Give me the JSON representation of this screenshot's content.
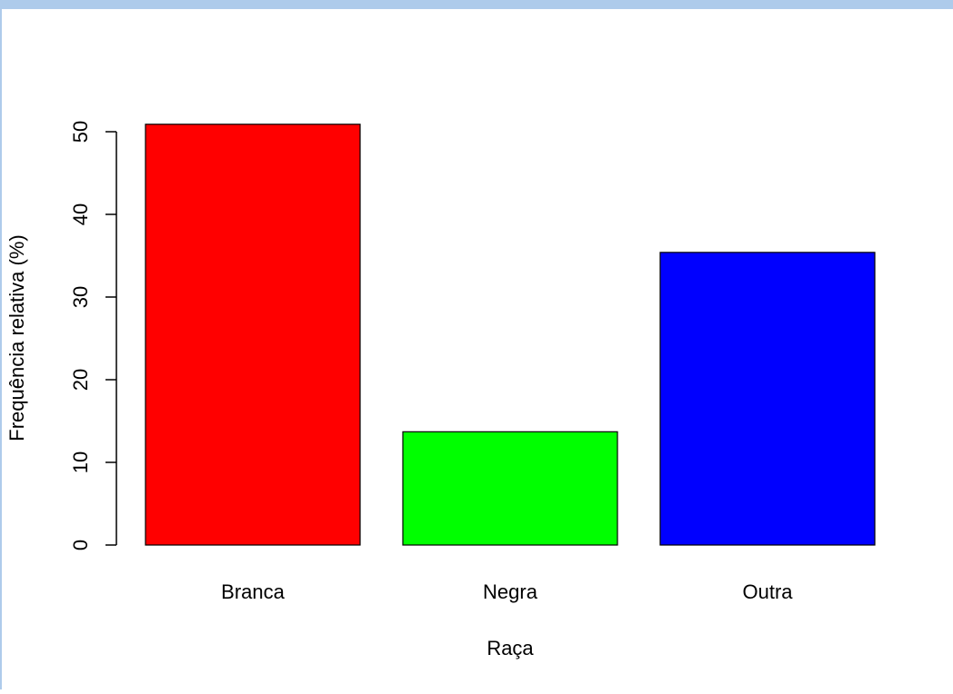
{
  "chart_data": {
    "type": "bar",
    "x_label": "Raça",
    "y_label": "Frequência relativa (%)",
    "categories": [
      "Branca",
      "Negra",
      "Outra"
    ],
    "values": [
      50.9,
      13.7,
      35.4
    ],
    "colors": [
      "#ff0000",
      "#00ff00",
      "#0000ff"
    ],
    "ylim": [
      0,
      50
    ],
    "yticks": [
      0,
      10,
      20,
      30,
      40,
      50
    ]
  }
}
